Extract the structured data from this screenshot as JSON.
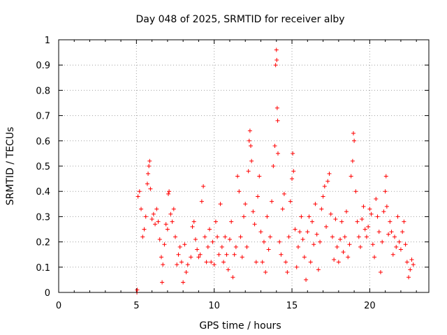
{
  "chart_data": {
    "type": "scatter",
    "title": "Day 048 of 2025, SRMTID for receiver alby",
    "xlabel": "GPS time / hours",
    "ylabel": "SRMTID / TECUs",
    "xlim": [
      0,
      23.8
    ],
    "ylim": [
      0,
      1
    ],
    "xticks": [
      0,
      5,
      10,
      15,
      20
    ],
    "xtick_labels": [
      "0",
      "5",
      "10",
      "15",
      "20"
    ],
    "yticks": [
      0,
      0.1,
      0.2,
      0.3,
      0.4,
      0.5,
      0.6,
      0.7,
      0.8,
      0.9,
      1
    ],
    "ytick_labels": [
      "0",
      "0.1",
      "0.2",
      "0.3",
      "0.4",
      "0.5",
      "0.6",
      "0.7",
      "0.8",
      "0.9",
      "1"
    ],
    "grid": true,
    "marker": "+",
    "series": [
      {
        "name": "SRMTID",
        "color": "#ff0000",
        "points": [
          [
            5.03,
            0.0
          ],
          [
            5.05,
            0.01
          ],
          [
            5.1,
            0.38
          ],
          [
            5.2,
            0.4
          ],
          [
            5.3,
            0.33
          ],
          [
            5.4,
            0.22
          ],
          [
            5.5,
            0.25
          ],
          [
            5.6,
            0.3
          ],
          [
            5.7,
            0.43
          ],
          [
            5.75,
            0.47
          ],
          [
            5.8,
            0.5
          ],
          [
            5.85,
            0.52
          ],
          [
            5.9,
            0.41
          ],
          [
            6.0,
            0.29
          ],
          [
            6.1,
            0.31
          ],
          [
            6.2,
            0.27
          ],
          [
            6.3,
            0.33
          ],
          [
            6.4,
            0.28
          ],
          [
            6.5,
            0.21
          ],
          [
            6.6,
            0.14
          ],
          [
            6.65,
            0.04
          ],
          [
            6.7,
            0.11
          ],
          [
            6.8,
            0.19
          ],
          [
            6.9,
            0.27
          ],
          [
            7.0,
            0.25
          ],
          [
            7.05,
            0.39
          ],
          [
            7.1,
            0.4
          ],
          [
            7.2,
            0.31
          ],
          [
            7.3,
            0.28
          ],
          [
            7.4,
            0.33
          ],
          [
            7.5,
            0.22
          ],
          [
            7.6,
            0.11
          ],
          [
            7.7,
            0.15
          ],
          [
            7.8,
            0.18
          ],
          [
            7.9,
            0.12
          ],
          [
            8.0,
            0.04
          ],
          [
            8.1,
            0.19
          ],
          [
            8.2,
            0.08
          ],
          [
            8.3,
            0.11
          ],
          [
            8.5,
            0.14
          ],
          [
            8.6,
            0.26
          ],
          [
            8.7,
            0.28
          ],
          [
            8.8,
            0.21
          ],
          [
            8.9,
            0.17
          ],
          [
            9.0,
            0.14
          ],
          [
            9.1,
            0.15
          ],
          [
            9.2,
            0.36
          ],
          [
            9.3,
            0.42
          ],
          [
            9.4,
            0.22
          ],
          [
            9.5,
            0.12
          ],
          [
            9.6,
            0.18
          ],
          [
            9.7,
            0.25
          ],
          [
            9.8,
            0.12
          ],
          [
            9.9,
            0.2
          ],
          [
            10.0,
            0.11
          ],
          [
            10.1,
            0.28
          ],
          [
            10.2,
            0.22
          ],
          [
            10.3,
            0.15
          ],
          [
            10.4,
            0.35
          ],
          [
            10.5,
            0.18
          ],
          [
            10.6,
            0.12
          ],
          [
            10.7,
            0.22
          ],
          [
            10.8,
            0.15
          ],
          [
            10.9,
            0.09
          ],
          [
            11.0,
            0.21
          ],
          [
            11.1,
            0.28
          ],
          [
            11.2,
            0.06
          ],
          [
            11.3,
            0.15
          ],
          [
            11.4,
            0.18
          ],
          [
            11.5,
            0.46
          ],
          [
            11.6,
            0.4
          ],
          [
            11.7,
            0.22
          ],
          [
            11.8,
            0.14
          ],
          [
            11.9,
            0.3
          ],
          [
            12.0,
            0.35
          ],
          [
            12.1,
            0.18
          ],
          [
            12.2,
            0.48
          ],
          [
            12.25,
            0.6
          ],
          [
            12.3,
            0.64
          ],
          [
            12.35,
            0.58
          ],
          [
            12.4,
            0.52
          ],
          [
            12.5,
            0.32
          ],
          [
            12.6,
            0.27
          ],
          [
            12.7,
            0.12
          ],
          [
            12.8,
            0.38
          ],
          [
            12.9,
            0.46
          ],
          [
            13.0,
            0.24
          ],
          [
            13.1,
            0.12
          ],
          [
            13.2,
            0.2
          ],
          [
            13.3,
            0.08
          ],
          [
            13.4,
            0.3
          ],
          [
            13.5,
            0.17
          ],
          [
            13.6,
            0.22
          ],
          [
            13.7,
            0.36
          ],
          [
            13.8,
            0.5
          ],
          [
            13.9,
            0.58
          ],
          [
            13.95,
            0.9
          ],
          [
            14.0,
            0.96
          ],
          [
            14.02,
            0.92
          ],
          [
            14.05,
            0.73
          ],
          [
            14.08,
            0.68
          ],
          [
            14.1,
            0.55
          ],
          [
            14.2,
            0.2
          ],
          [
            14.3,
            0.15
          ],
          [
            14.4,
            0.33
          ],
          [
            14.5,
            0.39
          ],
          [
            14.6,
            0.12
          ],
          [
            14.7,
            0.08
          ],
          [
            14.8,
            0.22
          ],
          [
            14.9,
            0.36
          ],
          [
            15.0,
            0.45
          ],
          [
            15.05,
            0.55
          ],
          [
            15.1,
            0.48
          ],
          [
            15.2,
            0.25
          ],
          [
            15.3,
            0.1
          ],
          [
            15.4,
            0.18
          ],
          [
            15.5,
            0.24
          ],
          [
            15.6,
            0.3
          ],
          [
            15.7,
            0.21
          ],
          [
            15.8,
            0.14
          ],
          [
            15.9,
            0.05
          ],
          [
            16.0,
            0.24
          ],
          [
            16.1,
            0.3
          ],
          [
            16.2,
            0.12
          ],
          [
            16.3,
            0.28
          ],
          [
            16.4,
            0.19
          ],
          [
            16.5,
            0.35
          ],
          [
            16.6,
            0.23
          ],
          [
            16.7,
            0.09
          ],
          [
            16.8,
            0.2
          ],
          [
            16.9,
            0.33
          ],
          [
            17.0,
            0.38
          ],
          [
            17.1,
            0.42
          ],
          [
            17.2,
            0.26
          ],
          [
            17.3,
            0.44
          ],
          [
            17.4,
            0.47
          ],
          [
            17.5,
            0.31
          ],
          [
            17.6,
            0.22
          ],
          [
            17.7,
            0.13
          ],
          [
            17.8,
            0.29
          ],
          [
            17.9,
            0.18
          ],
          [
            18.0,
            0.12
          ],
          [
            18.1,
            0.21
          ],
          [
            18.2,
            0.28
          ],
          [
            18.3,
            0.16
          ],
          [
            18.4,
            0.22
          ],
          [
            18.5,
            0.32
          ],
          [
            18.6,
            0.14
          ],
          [
            18.7,
            0.19
          ],
          [
            18.8,
            0.46
          ],
          [
            18.9,
            0.52
          ],
          [
            18.95,
            0.63
          ],
          [
            19.0,
            0.6
          ],
          [
            19.1,
            0.4
          ],
          [
            19.2,
            0.28
          ],
          [
            19.3,
            0.22
          ],
          [
            19.4,
            0.18
          ],
          [
            19.5,
            0.29
          ],
          [
            19.6,
            0.34
          ],
          [
            19.7,
            0.25
          ],
          [
            19.8,
            0.22
          ],
          [
            19.9,
            0.26
          ],
          [
            20.0,
            0.33
          ],
          [
            20.1,
            0.31
          ],
          [
            20.2,
            0.19
          ],
          [
            20.3,
            0.14
          ],
          [
            20.4,
            0.37
          ],
          [
            20.5,
            0.3
          ],
          [
            20.6,
            0.24
          ],
          [
            20.7,
            0.08
          ],
          [
            20.8,
            0.2
          ],
          [
            20.9,
            0.32
          ],
          [
            21.0,
            0.4
          ],
          [
            21.05,
            0.46
          ],
          [
            21.1,
            0.34
          ],
          [
            21.2,
            0.23
          ],
          [
            21.3,
            0.28
          ],
          [
            21.4,
            0.24
          ],
          [
            21.5,
            0.15
          ],
          [
            21.6,
            0.22
          ],
          [
            21.7,
            0.18
          ],
          [
            21.8,
            0.3
          ],
          [
            21.9,
            0.2
          ],
          [
            22.0,
            0.17
          ],
          [
            22.1,
            0.24
          ],
          [
            22.2,
            0.28
          ],
          [
            22.3,
            0.19
          ],
          [
            22.4,
            0.12
          ],
          [
            22.5,
            0.06
          ],
          [
            22.6,
            0.09
          ],
          [
            22.7,
            0.13
          ],
          [
            22.8,
            0.11
          ]
        ]
      }
    ]
  }
}
